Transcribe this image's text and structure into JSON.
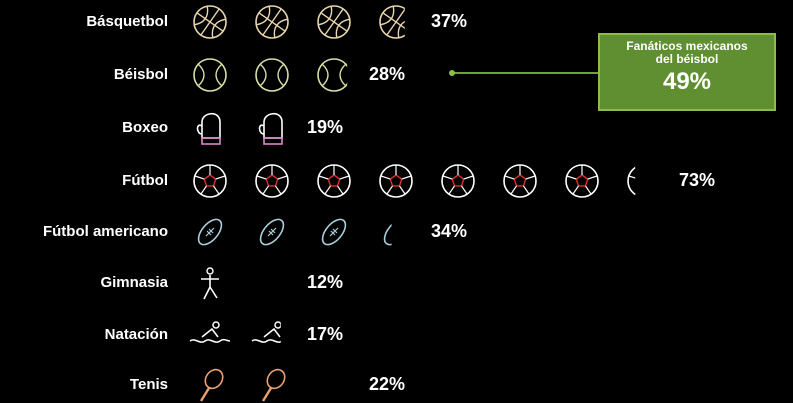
{
  "chart_data": {
    "type": "pictogram",
    "categories": [
      "Básquetbol",
      "Béisbol",
      "Boxeo",
      "Fútbol",
      "Fútbol americano",
      "Gimnasia",
      "Natación",
      "Tenis"
    ],
    "values": [
      37,
      28,
      19,
      73,
      34,
      12,
      17,
      22
    ],
    "value_labels": [
      "37%",
      "28%",
      "19%",
      "73%",
      "34%",
      "12%",
      "17%",
      "22%"
    ],
    "callout": {
      "text": "Fanáticos mexicanos del béisbol",
      "value": 49,
      "value_label": "49%"
    }
  }
}
